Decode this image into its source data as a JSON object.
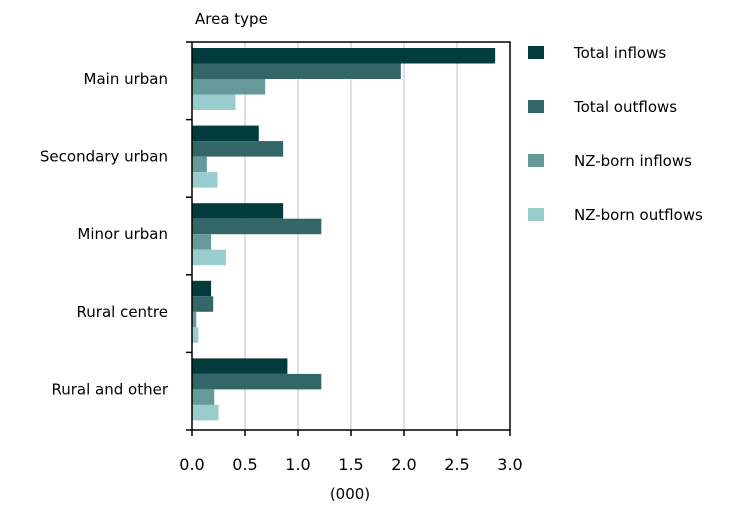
{
  "chart_data": {
    "type": "bar",
    "orientation": "horizontal",
    "title": "Area type",
    "xlabel": "(000)",
    "ylabel": "",
    "xlim": [
      0,
      3.0
    ],
    "xticks": [
      "0.0",
      "0.5",
      "1.0",
      "1.5",
      "2.0",
      "2.5",
      "3.0"
    ],
    "xtick_values": [
      0,
      0.5,
      1.0,
      1.5,
      2.0,
      2.5,
      3.0
    ],
    "grid": true,
    "legend_position": "right",
    "categories": [
      "Main urban",
      "Secondary urban",
      "Minor urban",
      "Rural centre",
      "Rural and other"
    ],
    "series": [
      {
        "name": "Total inflows",
        "color": "#003c3c",
        "values": [
          2.86,
          0.63,
          0.86,
          0.18,
          0.9
        ]
      },
      {
        "name": "Total outflows",
        "color": "#336666",
        "values": [
          1.97,
          0.86,
          1.22,
          0.2,
          1.22
        ]
      },
      {
        "name": "NZ-born inflows",
        "color": "#669999",
        "values": [
          0.69,
          0.14,
          0.18,
          0.04,
          0.21
        ]
      },
      {
        "name": "NZ-born outflows",
        "color": "#99cccc",
        "values": [
          0.41,
          0.24,
          0.32,
          0.06,
          0.25
        ]
      }
    ]
  }
}
